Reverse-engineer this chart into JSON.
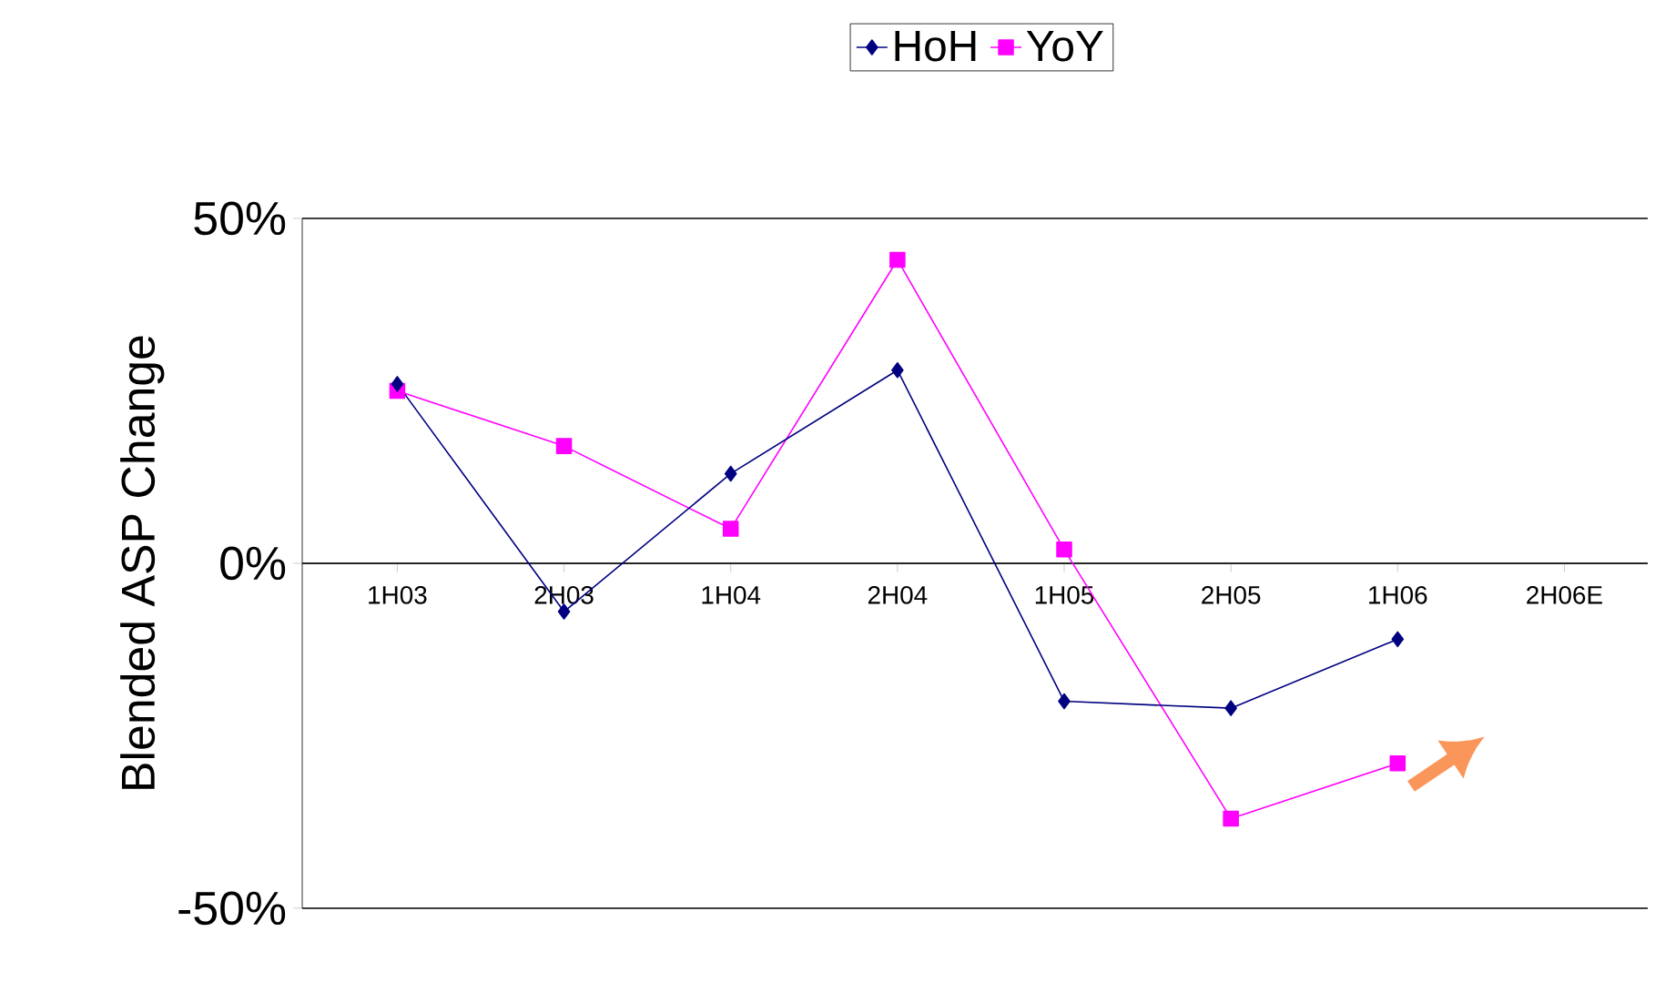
{
  "chart_data": {
    "type": "line",
    "ylabel": "Blended ASP Change",
    "categories": [
      "1H03",
      "2H03",
      "1H04",
      "2H04",
      "1H05",
      "2H05",
      "1H06",
      "2H06E"
    ],
    "series": [
      {
        "name": "HoH",
        "color": "#000080",
        "marker": "diamond",
        "values": [
          26,
          -7,
          13,
          28,
          -20,
          -21,
          -11,
          null
        ]
      },
      {
        "name": "YoY",
        "color": "#ff00ff",
        "marker": "square",
        "values": [
          25,
          17,
          5,
          44,
          2,
          -37,
          -29,
          null
        ]
      }
    ],
    "ylim": [
      -50,
      50
    ],
    "yticks": [
      {
        "value": -50,
        "label": "-50%"
      },
      {
        "value": 0,
        "label": "0%"
      },
      {
        "value": 50,
        "label": "50%"
      }
    ],
    "grid": "y",
    "legend": "top",
    "line_style": "solid"
  }
}
